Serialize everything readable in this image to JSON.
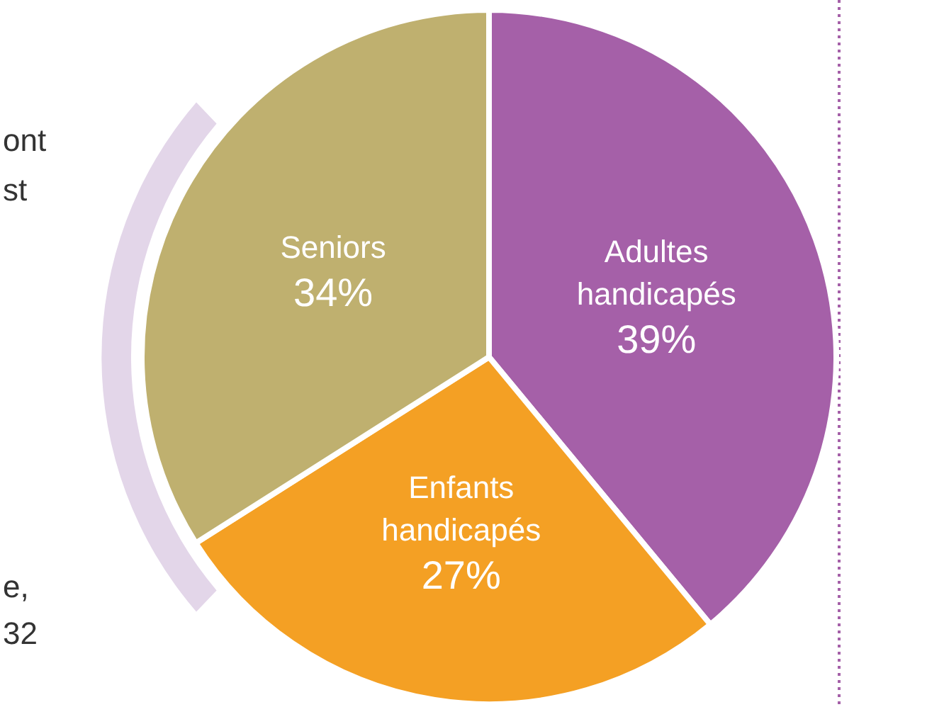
{
  "chart_data": {
    "type": "pie",
    "categories": [
      "Adultes handicapés",
      "Enfants handicapés",
      "Seniors"
    ],
    "values": [
      39,
      27,
      34
    ],
    "value_labels": [
      "39%",
      "27%",
      "34%"
    ],
    "colors": [
      "#a560a8",
      "#f4a024",
      "#bfb06f"
    ],
    "legend": false,
    "annotations": [
      "ont",
      "st",
      "e,",
      "32"
    ]
  }
}
